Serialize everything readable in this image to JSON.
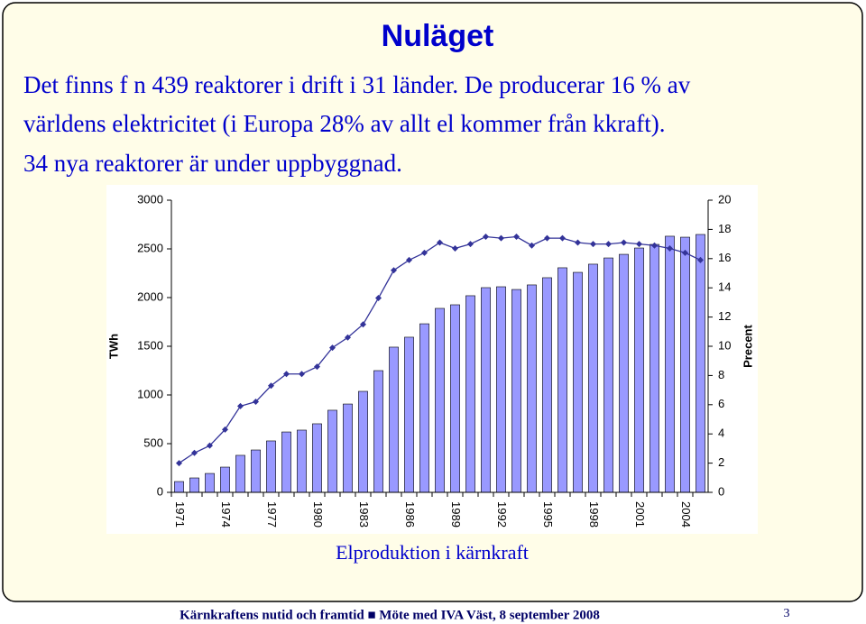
{
  "slide": {
    "title": "Nuläget",
    "body": [
      "Det finns f n 439 reaktorer i drift i 31 länder. De producerar 16 % av",
      "världens elektricitet (i Europa 28% av allt el kommer från kkraft).",
      "34 nya reaktorer är under uppbyggnad."
    ],
    "caption": "Elproduktion i kärnkraft",
    "footer": "Kärnkraftens nutid och framtid ■ Möte med IVA Väst, 8 september 2008",
    "page_number": "3"
  },
  "chart_data": {
    "type": "bar",
    "y_label": "TWh",
    "y2_label": "Precent",
    "categories": [
      "1971",
      null,
      null,
      "1974",
      null,
      null,
      "1977",
      null,
      null,
      "1980",
      null,
      null,
      "1983",
      null,
      null,
      "1986",
      null,
      null,
      "1989",
      null,
      null,
      "1992",
      null,
      null,
      "1995",
      null,
      null,
      "1998",
      null,
      null,
      "2001",
      null,
      null,
      "2004",
      null
    ],
    "series": [
      {
        "type": "bar",
        "color": "#9999ff",
        "values": [
          111,
          148,
          194,
          259,
          380,
          435,
          528,
          620,
          639,
          704,
          843,
          907,
          1037,
          1250,
          1491,
          1593,
          1731,
          1889,
          1926,
          2019,
          2102,
          2111,
          2083,
          2130,
          2204,
          2306,
          2259,
          2343,
          2407,
          2444,
          2509,
          2546,
          2630,
          2620,
          2648
        ]
      },
      {
        "type": "line",
        "axis": "y2",
        "color": "#333399",
        "values": [
          2.0,
          2.7,
          3.2,
          4.3,
          5.9,
          6.2,
          7.3,
          8.1,
          8.1,
          8.6,
          9.9,
          10.6,
          11.5,
          13.3,
          15.2,
          15.9,
          16.4,
          17.1,
          16.7,
          17.0,
          17.5,
          17.4,
          17.5,
          16.9,
          17.4,
          17.4,
          17.1,
          17.0,
          17.0,
          17.1,
          17.0,
          16.9,
          16.7,
          16.4,
          15.9
        ]
      }
    ],
    "ylim": [
      0,
      3000
    ],
    "yticks": [
      0,
      500,
      1000,
      1500,
      2000,
      2500,
      3000
    ],
    "y2lim": [
      0,
      20
    ],
    "y2ticks": [
      0,
      2,
      4,
      6,
      8,
      10,
      12,
      14,
      16,
      18,
      20
    ]
  }
}
